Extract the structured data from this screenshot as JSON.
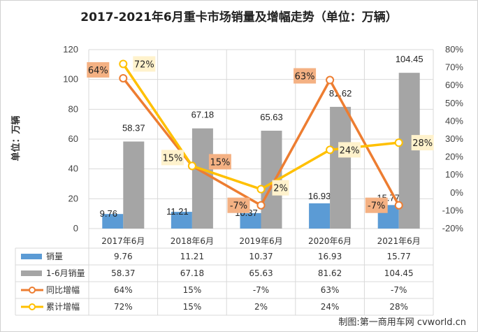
{
  "chart_data": {
    "type": "bar",
    "title": "2017-2021年6月重卡市场销量及增幅走势（单位：万辆）",
    "ylabel": "单位：万辆",
    "categories": [
      "2017年6月",
      "2018年6月",
      "2019年6月",
      "2020年6月",
      "2021年6月"
    ],
    "ylim": [
      0,
      120
    ],
    "y_ticks": [
      "0",
      "20",
      "40",
      "60",
      "80",
      "100",
      "120"
    ],
    "y2lim": [
      -20,
      80
    ],
    "y2_ticks": [
      "-20%",
      "-10%",
      "0%",
      "10%",
      "20%",
      "30%",
      "40%",
      "50%",
      "60%",
      "70%",
      "80%"
    ],
    "series": [
      {
        "name": "销量",
        "kind": "bar",
        "color": "#5b9bd5",
        "values": [
          9.76,
          11.21,
          10.37,
          16.93,
          15.77
        ],
        "labels": [
          "9.76",
          "11.21",
          "10.37",
          "16.93",
          "15.77"
        ]
      },
      {
        "name": "1-6月销量",
        "kind": "bar",
        "color": "#a5a5a5",
        "values": [
          58.37,
          67.18,
          65.63,
          81.62,
          104.45
        ],
        "labels": [
          "58.37",
          "67.18",
          "65.63",
          "81.62",
          "104.45"
        ]
      },
      {
        "name": "同比增幅",
        "kind": "line",
        "axis": "right",
        "color": "#ed7d31",
        "values": [
          64,
          15,
          -7,
          63,
          -7
        ],
        "labels": [
          "64%",
          "15%",
          "-7%",
          "63%",
          "-7%"
        ]
      },
      {
        "name": "累计增幅",
        "kind": "line",
        "axis": "right",
        "color": "#ffc000",
        "values": [
          72,
          15,
          2,
          24,
          28
        ],
        "labels": [
          "72%",
          "15%",
          "2%",
          "24%",
          "28%"
        ]
      }
    ],
    "grid": true,
    "legend": "data-table-below"
  },
  "credit": "制图:第一商用车网 cvworld.cn"
}
